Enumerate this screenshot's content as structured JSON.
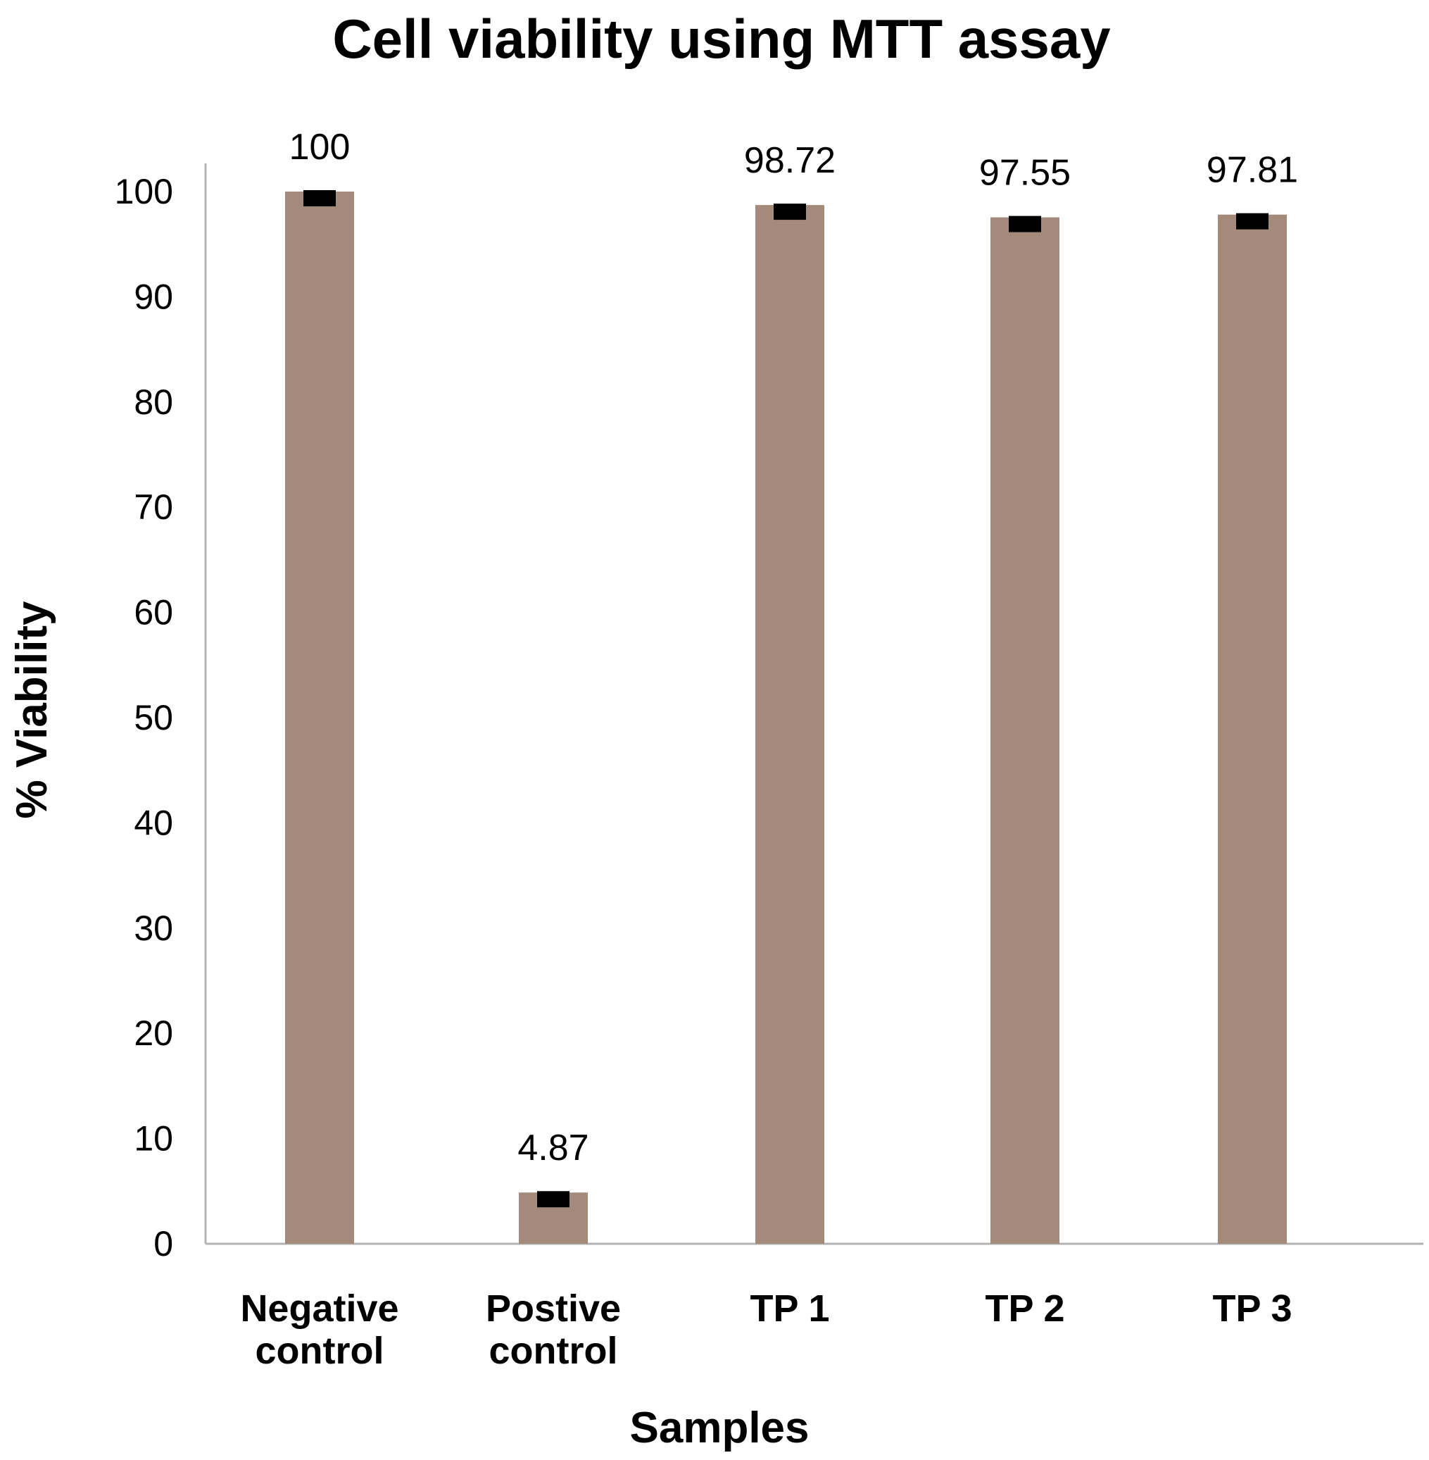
{
  "chart_data": {
    "type": "bar",
    "title": "Cell viability using MTT assay",
    "xlabel": "Samples",
    "ylabel": "% Viability",
    "categories": [
      [
        "Negative",
        "control"
      ],
      [
        "Postive",
        "control"
      ],
      [
        "TP 1"
      ],
      [
        "TP 2"
      ],
      [
        "TP 3"
      ]
    ],
    "values": [
      100,
      4.87,
      98.72,
      97.55,
      97.81
    ],
    "value_labels": [
      "100",
      "4.87",
      "98.72",
      "97.55",
      "97.81"
    ],
    "error": [
      0.6,
      0.6,
      0.6,
      0.6,
      0.6
    ],
    "ylim": [
      0,
      103
    ],
    "yticks": [
      0,
      10,
      20,
      30,
      40,
      50,
      60,
      70,
      80,
      90,
      100
    ],
    "grid": false,
    "legend": "none",
    "bar_color": "#a48a7a",
    "error_color": "#000000",
    "axis_color": "#b3b3b3"
  }
}
